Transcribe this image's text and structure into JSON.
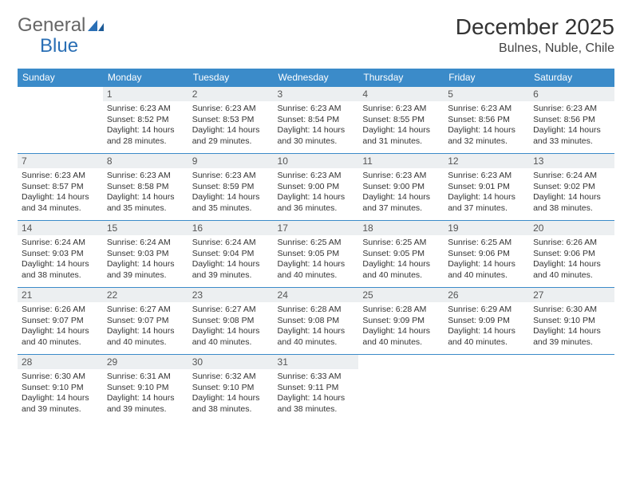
{
  "brand": {
    "part1": "General",
    "part2": "Blue"
  },
  "title": "December 2025",
  "location": "Bulnes, Nuble, Chile",
  "colors": {
    "header_bg": "#3b8bc9",
    "header_text": "#ffffff",
    "daynum_bg": "#eceff1",
    "border": "#3b8bc9",
    "brand_blue": "#2a6fb5"
  },
  "day_headers": [
    "Sunday",
    "Monday",
    "Tuesday",
    "Wednesday",
    "Thursday",
    "Friday",
    "Saturday"
  ],
  "weeks": [
    [
      null,
      {
        "n": "1",
        "sr": "6:23 AM",
        "ss": "8:52 PM",
        "dl": "14 hours and 28 minutes."
      },
      {
        "n": "2",
        "sr": "6:23 AM",
        "ss": "8:53 PM",
        "dl": "14 hours and 29 minutes."
      },
      {
        "n": "3",
        "sr": "6:23 AM",
        "ss": "8:54 PM",
        "dl": "14 hours and 30 minutes."
      },
      {
        "n": "4",
        "sr": "6:23 AM",
        "ss": "8:55 PM",
        "dl": "14 hours and 31 minutes."
      },
      {
        "n": "5",
        "sr": "6:23 AM",
        "ss": "8:56 PM",
        "dl": "14 hours and 32 minutes."
      },
      {
        "n": "6",
        "sr": "6:23 AM",
        "ss": "8:56 PM",
        "dl": "14 hours and 33 minutes."
      }
    ],
    [
      {
        "n": "7",
        "sr": "6:23 AM",
        "ss": "8:57 PM",
        "dl": "14 hours and 34 minutes."
      },
      {
        "n": "8",
        "sr": "6:23 AM",
        "ss": "8:58 PM",
        "dl": "14 hours and 35 minutes."
      },
      {
        "n": "9",
        "sr": "6:23 AM",
        "ss": "8:59 PM",
        "dl": "14 hours and 35 minutes."
      },
      {
        "n": "10",
        "sr": "6:23 AM",
        "ss": "9:00 PM",
        "dl": "14 hours and 36 minutes."
      },
      {
        "n": "11",
        "sr": "6:23 AM",
        "ss": "9:00 PM",
        "dl": "14 hours and 37 minutes."
      },
      {
        "n": "12",
        "sr": "6:23 AM",
        "ss": "9:01 PM",
        "dl": "14 hours and 37 minutes."
      },
      {
        "n": "13",
        "sr": "6:24 AM",
        "ss": "9:02 PM",
        "dl": "14 hours and 38 minutes."
      }
    ],
    [
      {
        "n": "14",
        "sr": "6:24 AM",
        "ss": "9:03 PM",
        "dl": "14 hours and 38 minutes."
      },
      {
        "n": "15",
        "sr": "6:24 AM",
        "ss": "9:03 PM",
        "dl": "14 hours and 39 minutes."
      },
      {
        "n": "16",
        "sr": "6:24 AM",
        "ss": "9:04 PM",
        "dl": "14 hours and 39 minutes."
      },
      {
        "n": "17",
        "sr": "6:25 AM",
        "ss": "9:05 PM",
        "dl": "14 hours and 40 minutes."
      },
      {
        "n": "18",
        "sr": "6:25 AM",
        "ss": "9:05 PM",
        "dl": "14 hours and 40 minutes."
      },
      {
        "n": "19",
        "sr": "6:25 AM",
        "ss": "9:06 PM",
        "dl": "14 hours and 40 minutes."
      },
      {
        "n": "20",
        "sr": "6:26 AM",
        "ss": "9:06 PM",
        "dl": "14 hours and 40 minutes."
      }
    ],
    [
      {
        "n": "21",
        "sr": "6:26 AM",
        "ss": "9:07 PM",
        "dl": "14 hours and 40 minutes."
      },
      {
        "n": "22",
        "sr": "6:27 AM",
        "ss": "9:07 PM",
        "dl": "14 hours and 40 minutes."
      },
      {
        "n": "23",
        "sr": "6:27 AM",
        "ss": "9:08 PM",
        "dl": "14 hours and 40 minutes."
      },
      {
        "n": "24",
        "sr": "6:28 AM",
        "ss": "9:08 PM",
        "dl": "14 hours and 40 minutes."
      },
      {
        "n": "25",
        "sr": "6:28 AM",
        "ss": "9:09 PM",
        "dl": "14 hours and 40 minutes."
      },
      {
        "n": "26",
        "sr": "6:29 AM",
        "ss": "9:09 PM",
        "dl": "14 hours and 40 minutes."
      },
      {
        "n": "27",
        "sr": "6:30 AM",
        "ss": "9:10 PM",
        "dl": "14 hours and 39 minutes."
      }
    ],
    [
      {
        "n": "28",
        "sr": "6:30 AM",
        "ss": "9:10 PM",
        "dl": "14 hours and 39 minutes."
      },
      {
        "n": "29",
        "sr": "6:31 AM",
        "ss": "9:10 PM",
        "dl": "14 hours and 39 minutes."
      },
      {
        "n": "30",
        "sr": "6:32 AM",
        "ss": "9:10 PM",
        "dl": "14 hours and 38 minutes."
      },
      {
        "n": "31",
        "sr": "6:33 AM",
        "ss": "9:11 PM",
        "dl": "14 hours and 38 minutes."
      },
      null,
      null,
      null
    ]
  ],
  "labels": {
    "sunrise": "Sunrise:",
    "sunset": "Sunset:",
    "daylight": "Daylight:"
  }
}
